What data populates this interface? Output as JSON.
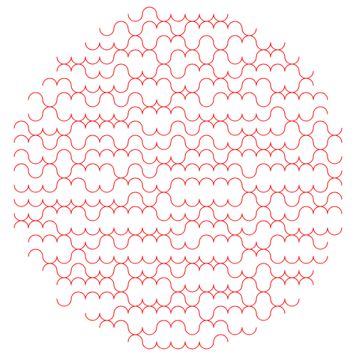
{
  "pattern": {
    "kind": "truchet-semicircle-tiling",
    "boundary": "circle",
    "stroke_color": "#ff0000",
    "background_color": "#ffffff",
    "seed": 7
  }
}
